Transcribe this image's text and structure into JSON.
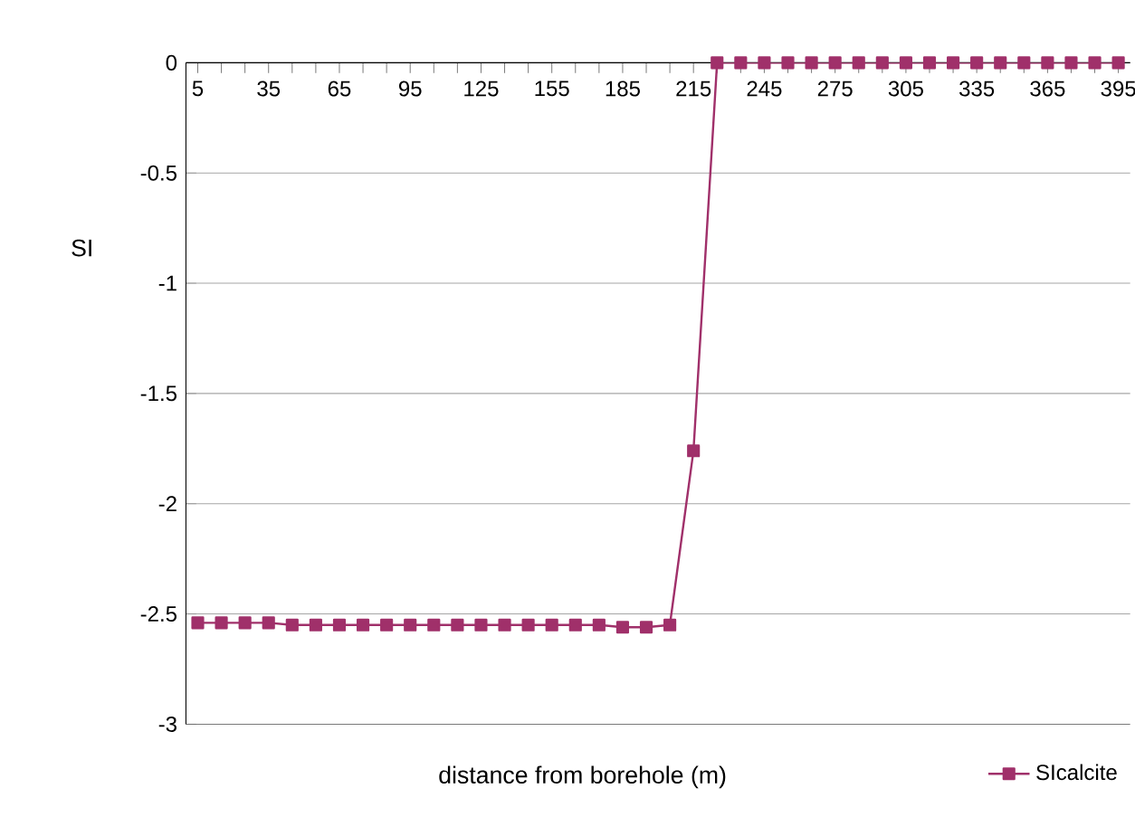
{
  "chart_data": {
    "type": "line",
    "xlabel": "distance from borehole (m)",
    "ylabel": "SI",
    "categories": [
      "5",
      null,
      null,
      "35",
      null,
      null,
      "65",
      null,
      null,
      "95",
      null,
      null,
      "125",
      null,
      null,
      "155",
      null,
      null,
      "185",
      null,
      null,
      "215",
      null,
      null,
      "245",
      null,
      null,
      "275",
      null,
      null,
      "305",
      null,
      null,
      "335",
      null,
      null,
      "365",
      null,
      null,
      "395"
    ],
    "series": [
      {
        "name": "SIcalcite",
        "color": "#a0306a",
        "values": [
          -2.54,
          -2.54,
          -2.54,
          -2.54,
          -2.55,
          -2.55,
          -2.55,
          -2.55,
          -2.55,
          -2.55,
          -2.55,
          -2.55,
          -2.55,
          -2.55,
          -2.55,
          -2.55,
          -2.55,
          -2.55,
          -2.56,
          -2.56,
          -2.55,
          -1.76,
          0,
          0,
          0,
          0,
          0,
          0,
          0,
          0,
          0,
          0,
          0,
          0,
          0,
          0,
          0,
          0,
          0,
          0
        ]
      }
    ],
    "ylim": [
      -3,
      0
    ],
    "yticks": [
      -3,
      -2.5,
      -2,
      -1.5,
      -1,
      -0.5,
      0
    ],
    "grid": "y",
    "legend": "bottom right",
    "marker": "square",
    "line_style": "solid"
  }
}
